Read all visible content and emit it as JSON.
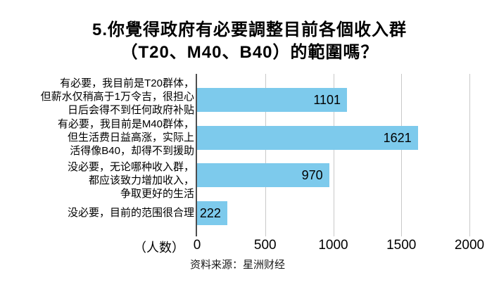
{
  "title": {
    "line1": "5.你覺得政府有必要調整目前各個收入群",
    "line2": "（T20、M40、B40）的範圍嗎？"
  },
  "chart_data": {
    "type": "bar",
    "orientation": "horizontal",
    "title": "5.你覺得政府有必要調整目前各個收入群（T20、M40、B40）的範圍嗎？",
    "categories": [
      "有必要，我目前是T20群体，但薪水仅稍高于1万令吉，很担心日后会得不到任何政府补贴",
      "有必要，我目前是M40群体，但生活费日益高涨，实际上活得像B40，却得不到援助",
      "没必要，无论哪种收入群，都应该致力增加收入，争取更好的生活",
      "没必要，目前的范围很合理"
    ],
    "values": [
      1101,
      1621,
      970,
      222
    ],
    "rows": [
      {
        "label_lines": [
          "有必要，我目前是T20群体，",
          "但薪水仅稍高于1万令吉，很担心",
          "日后会得不到任何政府补贴"
        ],
        "value": 1101
      },
      {
        "label_lines": [
          "有必要，我目前是M40群体，",
          "但生活费日益高涨，实际上",
          "活得像B40，却得不到援助"
        ],
        "value": 1621
      },
      {
        "label_lines": [
          "没必要，无论哪种收入群，",
          "都应该致力增加收入，",
          "争取更好的生活"
        ],
        "value": 970
      },
      {
        "label_lines": [
          "没必要，目前的范围很合理"
        ],
        "value": 222
      }
    ],
    "xlabel": "（人数）",
    "ylabel": "",
    "x_ticks": [
      "0",
      "500",
      "1000",
      "1500",
      "2000"
    ],
    "xlim": [
      0,
      2000
    ],
    "grid": "vertical",
    "legend": "none",
    "bar_color": "#7dcaec",
    "source": "资料来源：星洲财经"
  },
  "colors": {
    "bar": "#7dcaec",
    "gridline": "#c9c9c9",
    "axis_line": "#4d4d4d",
    "text": "#000000"
  }
}
